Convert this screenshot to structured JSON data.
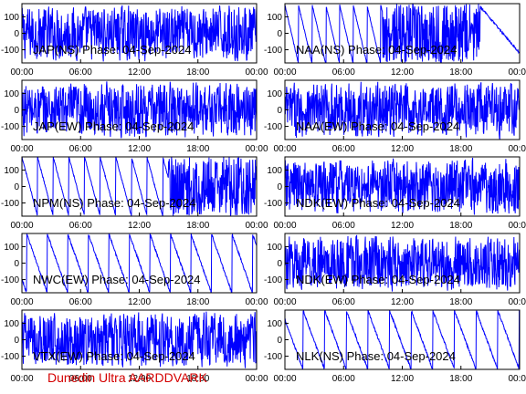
{
  "footer": "Dunedin Ultra AARDDVARK",
  "colors": {
    "trace": "#0000ff",
    "axes": "#000000",
    "footer": "#d40000"
  },
  "x_ticks": [
    "00:00",
    "06:00",
    "12:00",
    "18:00",
    "00:00"
  ],
  "y_ticks": [
    100,
    0,
    -100
  ],
  "chart_data": [
    {
      "type": "line",
      "title": "JAP(NS) Phase: 04-Sep-2024",
      "xlim": [
        0,
        24
      ],
      "ylim": [
        -180,
        180
      ],
      "pattern": "dense",
      "series": [
        {
          "values": []
        }
      ]
    },
    {
      "type": "line",
      "title": "NAA(NS) Phase: 04-Sep-2024",
      "xlim": [
        0,
        24
      ],
      "ylim": [
        -180,
        180
      ],
      "pattern": "mixed",
      "series": [
        {
          "values": []
        }
      ]
    },
    {
      "type": "line",
      "title": "JAP(EW) Phase: 04-Sep-2024",
      "xlim": [
        0,
        24
      ],
      "ylim": [
        -180,
        180
      ],
      "pattern": "dense",
      "series": [
        {
          "values": []
        }
      ]
    },
    {
      "type": "line",
      "title": "NAA(EW) Phase: 04-Sep-2024",
      "xlim": [
        0,
        24
      ],
      "ylim": [
        -180,
        180
      ],
      "pattern": "dense",
      "series": [
        {
          "values": []
        }
      ]
    },
    {
      "type": "line",
      "title": "NPM(NS) Phase: 04-Sep-2024",
      "xlim": [
        0,
        24
      ],
      "ylim": [
        -180,
        180
      ],
      "pattern": "sawtooth-then-dense",
      "series": [
        {
          "values": []
        }
      ]
    },
    {
      "type": "line",
      "title": "NDK(EW) Phase: 04-Sep-2024",
      "xlim": [
        0,
        24
      ],
      "ylim": [
        -180,
        180
      ],
      "pattern": "dense",
      "series": [
        {
          "values": []
        }
      ]
    },
    {
      "type": "line",
      "title": "NWC(EW) Phase: 04-Sep-2024",
      "xlim": [
        0,
        24
      ],
      "ylim": [
        -180,
        180
      ],
      "pattern": "sawtooth",
      "series": [
        {
          "values": []
        }
      ]
    },
    {
      "type": "line",
      "title": "NDK(EW) Phase: 04-Sep-2024",
      "xlim": [
        0,
        24
      ],
      "ylim": [
        -180,
        180
      ],
      "pattern": "dense",
      "series": [
        {
          "values": []
        }
      ]
    },
    {
      "type": "line",
      "title": "VTX(EW) Phase: 04-Sep-2024",
      "xlim": [
        0,
        24
      ],
      "ylim": [
        -180,
        180
      ],
      "pattern": "dense",
      "series": [
        {
          "values": []
        }
      ]
    },
    {
      "type": "line",
      "title": "NLK(NS) Phase: 04-Sep-2024",
      "xlim": [
        0,
        24
      ],
      "ylim": [
        -180,
        180
      ],
      "pattern": "sawtooth",
      "series": [
        {
          "values": []
        }
      ]
    }
  ]
}
